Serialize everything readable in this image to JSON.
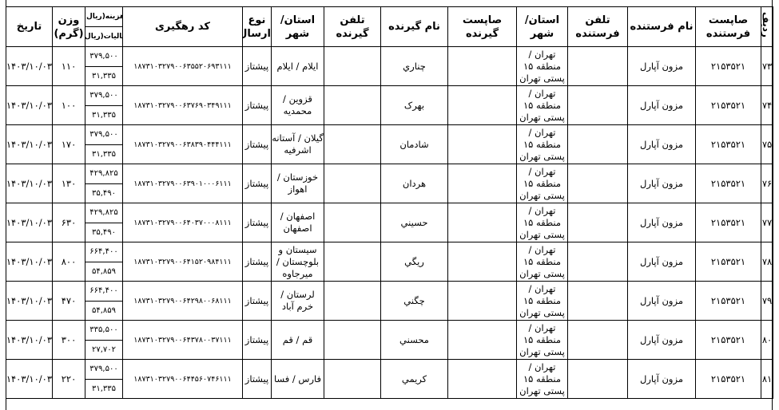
{
  "headers": {
    "row": "ردیف",
    "sender_post": "صاپست فرستنده",
    "sender_name": "نام فرستنده",
    "sender_phone": "تلفن فرستنده",
    "sender_city": "استان/ شهر",
    "receiver_post": "صاپست گیرنده",
    "receiver_name": "نام گیرنده",
    "receiver_phone": "تلفن گیرنده",
    "receiver_city": "استان/ شهر",
    "type": "نوع ارسال",
    "code": "کد رهگیری",
    "cost": "هزینه(ریال)",
    "tax": "مالیات(ریال)",
    "weight": "وزن (گرم)",
    "date": "تاریخ"
  },
  "rows": [
    {
      "row": "۷۳",
      "sender_post": "۲۱۵۳۵۲۱",
      "sender_name": "مزون آپارل",
      "sender_phone": "",
      "sender_city": "تهران / منطقه ۱۵ پستی تهران",
      "receiver_post": "",
      "receiver_name": "چناري",
      "receiver_phone": "",
      "receiver_city": "ایلام / ایلام",
      "type": "پیشتاز",
      "code": "۱۸۷۳۱۰۳۲۷۹۰۰۶۳۵۵۲۰۶۹۳۱۱۱",
      "cost": "۳۷۹,۵۰۰",
      "tax": "۳۱,۳۳۵",
      "weight": "۱۱۰",
      "date": "۱۴۰۳/۱۰/۰۳"
    },
    {
      "row": "۷۴",
      "sender_post": "۲۱۵۳۵۲۱",
      "sender_name": "مزون آپارل",
      "sender_phone": "",
      "sender_city": "تهران / منطقه ۱۵ پستی تهران",
      "receiver_post": "",
      "receiver_name": "بهرک",
      "receiver_phone": "",
      "receiver_city": "قزوین / محمدیه",
      "type": "پیشتاز",
      "code": "۱۸۷۳۱۰۳۲۷۹۰۰۶۳۷۶۹۰۳۴۹۱۱۱",
      "cost": "۳۷۹,۵۰۰",
      "tax": "۳۱,۳۳۵",
      "weight": "۱۰۰",
      "date": "۱۴۰۳/۱۰/۰۳"
    },
    {
      "row": "۷۵",
      "sender_post": "۲۱۵۳۵۲۱",
      "sender_name": "مزون آپارل",
      "sender_phone": "",
      "sender_city": "تهران / منطقه ۱۵ پستی تهران",
      "receiver_post": "",
      "receiver_name": "شادمان",
      "receiver_phone": "",
      "receiver_city": "گیلان / آستانه اشرفیه",
      "type": "پیشتاز",
      "code": "۱۸۷۳۱۰۳۲۷۹۰۰۶۳۸۳۹۰۴۴۴۱۱۱",
      "cost": "۳۷۹,۵۰۰",
      "tax": "۳۱,۳۳۵",
      "weight": "۱۷۰",
      "date": "۱۴۰۳/۱۰/۰۳"
    },
    {
      "row": "۷۶",
      "sender_post": "۲۱۵۳۵۲۱",
      "sender_name": "مزون آپارل",
      "sender_phone": "",
      "sender_city": "تهران / منطقه ۱۵ پستی تهران",
      "receiver_post": "",
      "receiver_name": "هردان",
      "receiver_phone": "",
      "receiver_city": "خوزستان / اهواز",
      "type": "پیشتاز",
      "code": "۱۸۷۳۱۰۳۲۷۹۰۰۶۳۹۰۱۰۰۰۶۱۱۱",
      "cost": "۴۲۹,۸۲۵",
      "tax": "۳۵,۴۹۰",
      "weight": "۱۳۰",
      "date": "۱۴۰۳/۱۰/۰۳"
    },
    {
      "row": "۷۷",
      "sender_post": "۲۱۵۳۵۲۱",
      "sender_name": "مزون آپارل",
      "sender_phone": "",
      "sender_city": "تهران / منطقه ۱۵ پستی تهران",
      "receiver_post": "",
      "receiver_name": "حسيني",
      "receiver_phone": "",
      "receiver_city": "اصفهان / اصفهان",
      "type": "پیشتاز",
      "code": "۱۸۷۳۱۰۳۲۷۹۰۰۶۴۰۳۷۰۰۰۸۱۱۱",
      "cost": "۴۲۹,۸۲۵",
      "tax": "۳۵,۴۹۰",
      "weight": "۶۳۰",
      "date": "۱۴۰۳/۱۰/۰۳"
    },
    {
      "row": "۷۸",
      "sender_post": "۲۱۵۳۵۲۱",
      "sender_name": "مزون آپارل",
      "sender_phone": "",
      "sender_city": "تهران / منطقه ۱۵ پستی تهران",
      "receiver_post": "",
      "receiver_name": "ريگي",
      "receiver_phone": "",
      "receiver_city": "سیستان و بلوچستان / میرجاوه",
      "type": "پیشتاز",
      "code": "۱۸۷۳۱۰۳۲۷۹۰۰۶۴۱۵۲۰۹۸۴۱۱۱",
      "cost": "۶۶۴,۴۰۰",
      "tax": "۵۴,۸۵۹",
      "weight": "۸۰۰",
      "date": "۱۴۰۳/۱۰/۰۳"
    },
    {
      "row": "۷۹",
      "sender_post": "۲۱۵۳۵۲۱",
      "sender_name": "مزون آپارل",
      "sender_phone": "",
      "sender_city": "تهران / منطقه ۱۵ پستی تهران",
      "receiver_post": "",
      "receiver_name": "چگني",
      "receiver_phone": "",
      "receiver_city": "لرستان / خرم آباد",
      "type": "پیشتاز",
      "code": "۱۸۷۳۱۰۳۲۷۹۰۰۶۴۲۹۸۰۰۶۸۱۱۱",
      "cost": "۶۶۴,۴۰۰",
      "tax": "۵۴,۸۵۹",
      "weight": "۴۷۰",
      "date": "۱۴۰۳/۱۰/۰۳"
    },
    {
      "row": "۸۰",
      "sender_post": "۲۱۵۳۵۲۱",
      "sender_name": "مزون آپارل",
      "sender_phone": "",
      "sender_city": "تهران / منطقه ۱۵ پستی تهران",
      "receiver_post": "",
      "receiver_name": "محسني",
      "receiver_phone": "",
      "receiver_city": "قم / قم",
      "type": "پیشتاز",
      "code": "۱۸۷۳۱۰۳۲۷۹۰۰۶۴۳۷۸۰۰۳۷۱۱۱",
      "cost": "۳۳۵,۵۰۰",
      "tax": "۲۷,۷۰۲",
      "weight": "۳۰۰",
      "date": "۱۴۰۳/۱۰/۰۳"
    },
    {
      "row": "۸۱",
      "sender_post": "۲۱۵۳۵۲۱",
      "sender_name": "مزون آپارل",
      "sender_phone": "",
      "sender_city": "تهران / منطقه ۱۵ پستی تهران",
      "receiver_post": "",
      "receiver_name": "كريمي",
      "receiver_phone": "",
      "receiver_city": "فارس / فسا",
      "type": "پیشتاز",
      "code": "۱۸۷۳۱۰۳۲۷۹۰۰۶۴۴۵۶۰۷۴۶۱۱۱",
      "cost": "۳۷۹,۵۰۰",
      "tax": "۳۱,۳۳۵",
      "weight": "۲۲۰",
      "date": "۱۴۰۳/۱۰/۰۳"
    }
  ]
}
